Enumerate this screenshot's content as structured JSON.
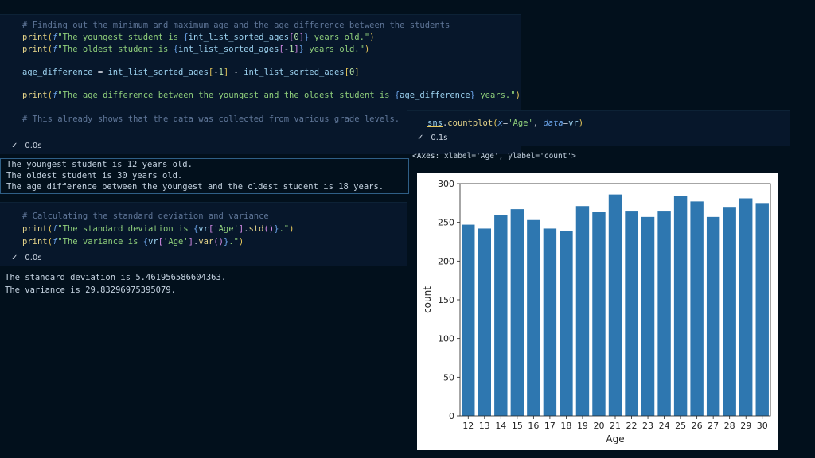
{
  "cell1": {
    "lines": [
      "# Finding out the minimum and maximum age and the age difference between the students",
      "print(f\"The youngest student is {int_list_sorted_ages[0]} years old.\")",
      "print(f\"The oldest student is {int_list_sorted_ages[-1]} years old.\")",
      "",
      "age_difference = int_list_sorted_ages[-1] - int_list_sorted_ages[0]",
      "",
      "print(f\"The age difference between the youngest and the oldest student is {age_difference} years.\")",
      "",
      "# This already shows that the data was collected from various grade levels."
    ],
    "status": "0.0s",
    "output": [
      "The youngest student is 12 years old.",
      "The oldest student is 30 years old.",
      "The age difference between the youngest and the oldest student is 18 years."
    ]
  },
  "cell2": {
    "lines": [
      "# Calculating the standard deviation and variance",
      "print(f\"The standard deviation is {vr['Age'].std()}.\")",
      "print(f\"The variance is {vr['Age'].var()}.\")"
    ],
    "status": "0.0s",
    "output": [
      "The standard deviation is 5.461956586604363.",
      "The variance is 29.83296975395079."
    ]
  },
  "cell3": {
    "code": "sns.countplot(x='Age', data=vr)",
    "status": "0.1s",
    "axes_text": "<Axes: xlabel='Age', ylabel='count'>"
  },
  "colors": {
    "bar": "#2e77b0",
    "background": "#02101c",
    "cell": "#07172b"
  },
  "chart_data": {
    "type": "bar",
    "categories": [
      "12",
      "13",
      "14",
      "15",
      "16",
      "17",
      "18",
      "19",
      "20",
      "21",
      "22",
      "23",
      "24",
      "25",
      "26",
      "27",
      "28",
      "29",
      "30"
    ],
    "values": [
      247,
      242,
      259,
      267,
      253,
      242,
      239,
      271,
      264,
      286,
      265,
      257,
      265,
      284,
      277,
      257,
      270,
      281,
      275
    ],
    "xlabel": "Age",
    "ylabel": "count",
    "ylim": [
      0,
      300
    ],
    "yticks": [
      0,
      50,
      100,
      150,
      200,
      250,
      300
    ],
    "grid": false
  }
}
